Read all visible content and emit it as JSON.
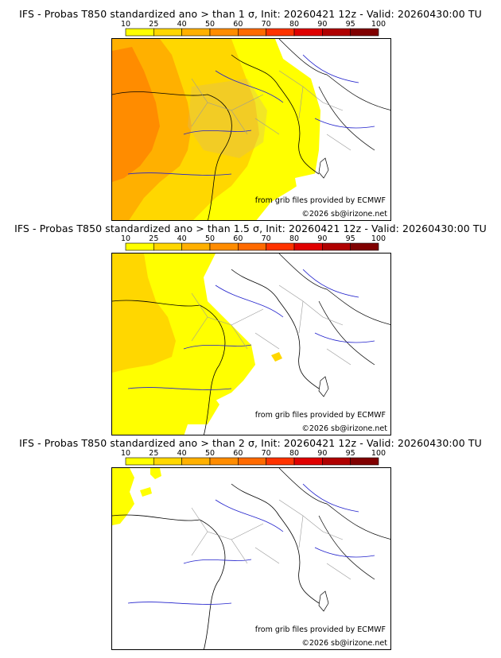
{
  "panels": [
    {
      "title": "IFS - Probas T850  standardized ano > than 1 σ, Init: 20260421 12z - Valid: 20260430:00 TU",
      "credit_source": "from grib files provided by ECMWF",
      "credit_site": "©2026 sb@irizone.net"
    },
    {
      "title": "IFS - Probas T850  standardized ano > than 1.5 σ, Init: 20260421 12z - Valid: 20260430:00 TU",
      "credit_source": "from grib files provided by ECMWF",
      "credit_site": "©2026 sb@irizone.net"
    },
    {
      "title": "IFS - Probas T850  standardized ano > than 2 σ, Init: 20260421 12z - Valid: 20260430:00 TU",
      "credit_source": "from grib files provided by ECMWF",
      "credit_site": "©2026 sb@irizone.net"
    }
  ],
  "legend": {
    "ticks": [
      "10",
      "25",
      "40",
      "50",
      "60",
      "70",
      "80",
      "90",
      "95",
      "100"
    ],
    "colors": [
      "#ffff00",
      "#ffd700",
      "#ffb000",
      "#ff8c00",
      "#ff6a00",
      "#ff3300",
      "#e00000",
      "#b00000",
      "#800000"
    ]
  },
  "colors": {
    "coast": "#000000",
    "rivers": "#2020cc",
    "regions": "#999999",
    "prob_10": "#ffff00",
    "prob_25": "#ffd700",
    "prob_40": "#ffb000",
    "prob_50": "#ff8c00"
  }
}
